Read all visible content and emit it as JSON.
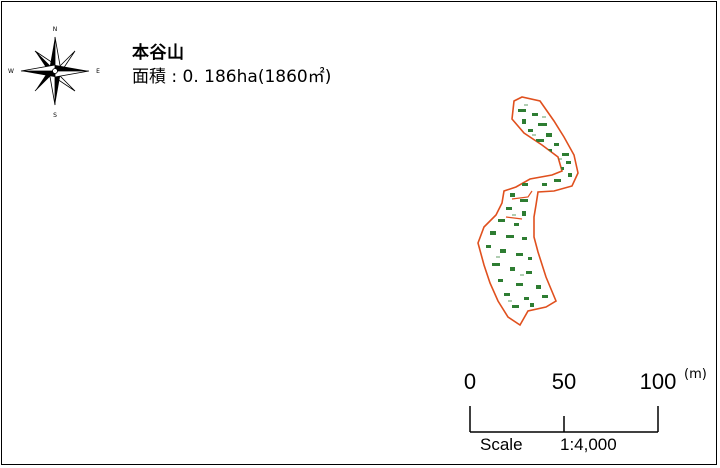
{
  "map": {
    "place_name": "本谷山",
    "area_label": "面積",
    "area_separator": ":",
    "area_value": "0. 186ha",
    "area_sqm": "(1860㎡)",
    "parcel_outline_color": "#e0501e",
    "vegetation_color": "#2e7d32",
    "compass": {
      "icon": "compass-rose-icon",
      "n": "N",
      "s": "S",
      "e": "E",
      "w": "W"
    },
    "scale": {
      "ticks": [
        "0",
        "50",
        "100"
      ],
      "unit": "(m)",
      "word": "Scale",
      "ratio": "1:4,000"
    }
  }
}
